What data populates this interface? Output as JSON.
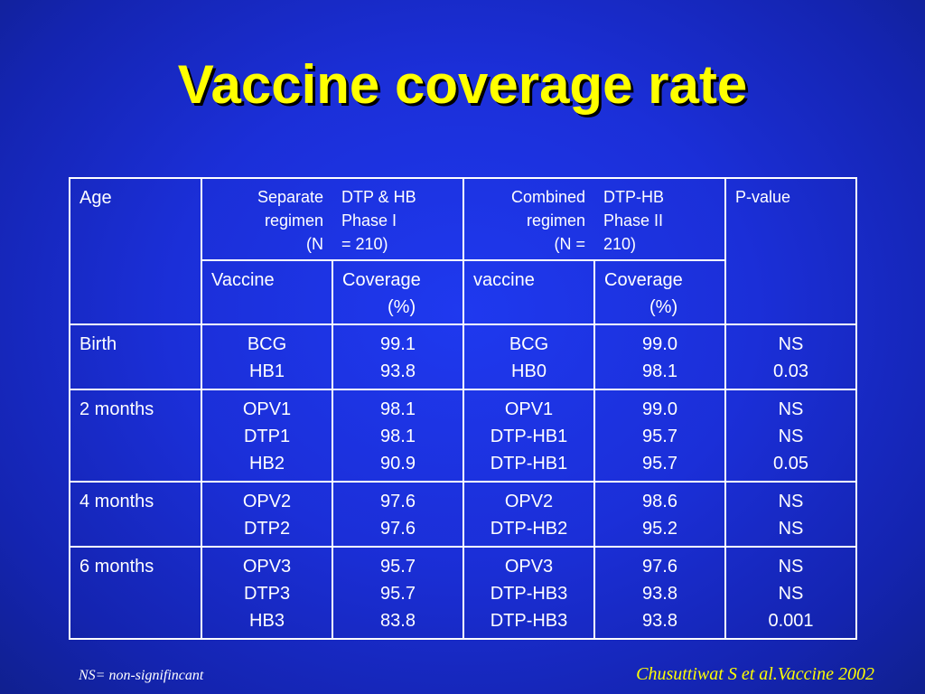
{
  "title": "Vaccine coverage rate",
  "header": {
    "age": "Age",
    "separate": {
      "left": [
        "Separate",
        "regimen",
        "(N"
      ],
      "right": [
        "DTP & HB",
        "Phase I",
        "= 210)"
      ]
    },
    "combined": {
      "left": [
        "Combined",
        "regimen",
        "(N ="
      ],
      "right": [
        "DTP-HB",
        "Phase II",
        "210)"
      ]
    },
    "pvalue": "P-value",
    "sub": {
      "vaccine1": "Vaccine",
      "coverage1": [
        "Coverage",
        "(%)"
      ],
      "vaccine2": "vaccine",
      "coverage2": [
        "Coverage",
        "(%)"
      ]
    }
  },
  "rows": [
    {
      "age": "Birth",
      "v1": [
        "BCG",
        "HB1"
      ],
      "c1": [
        "99.1",
        "93.8"
      ],
      "v2": [
        "BCG",
        "HB0"
      ],
      "c2": [
        "99.0",
        "98.1"
      ],
      "p": [
        "NS",
        "0.03"
      ]
    },
    {
      "age": "2 months",
      "v1": [
        "OPV1",
        "DTP1",
        "HB2"
      ],
      "c1": [
        "98.1",
        "98.1",
        "90.9"
      ],
      "v2": [
        "OPV1",
        "DTP-HB1",
        "DTP-HB1"
      ],
      "c2": [
        "99.0",
        "95.7",
        "95.7"
      ],
      "p": [
        "NS",
        "NS",
        "0.05"
      ]
    },
    {
      "age": "4 months",
      "v1": [
        "OPV2",
        "DTP2"
      ],
      "c1": [
        "97.6",
        "97.6"
      ],
      "v2": [
        "OPV2",
        "DTP-HB2"
      ],
      "c2": [
        "98.6",
        "95.2"
      ],
      "p": [
        "NS",
        "NS"
      ]
    },
    {
      "age": "6 months",
      "v1": [
        "OPV3",
        "DTP3",
        "HB3"
      ],
      "c1": [
        "95.7",
        "95.7",
        "83.8"
      ],
      "v2": [
        "OPV3",
        "DTP-HB3",
        "DTP-HB3"
      ],
      "c2": [
        "97.6",
        "93.8",
        "93.8"
      ],
      "p": [
        "NS",
        "NS",
        "0.001"
      ]
    }
  ],
  "footnote": "NS= non-signifincant",
  "citation": "Chusuttiwat S et al.Vaccine 2002"
}
